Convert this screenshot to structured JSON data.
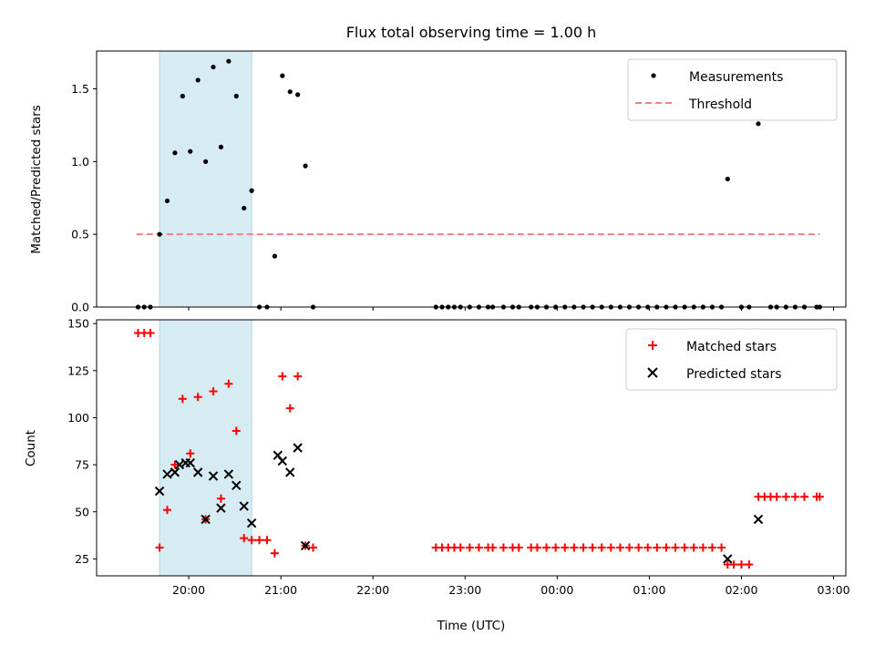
{
  "chart_data": [
    {
      "type": "scatter",
      "title": "Flux total observing time = 1.00 h",
      "xlabel": "",
      "ylabel": "Matched/Predicted stars",
      "ylim": [
        0,
        1.76
      ],
      "yticks": [
        0.0,
        0.5,
        1.0,
        1.5
      ],
      "ytick_labels": [
        "0.0",
        "0.5",
        "1.0",
        "1.5"
      ],
      "legend_position": "top-right",
      "highlight": {
        "color": "#add8e6",
        "x_start": "19:41",
        "x_end": "20:41"
      },
      "series": [
        {
          "name": "Measurements",
          "marker": "dot",
          "color": "#000000",
          "points": [
            [
              "19:27",
              0
            ],
            [
              "19:31",
              0
            ],
            [
              "19:35",
              0
            ],
            [
              "19:41",
              0.5
            ],
            [
              "19:46",
              0.73
            ],
            [
              "19:51",
              1.06
            ],
            [
              "19:56",
              1.45
            ],
            [
              "20:01",
              1.07
            ],
            [
              "20:06",
              1.56
            ],
            [
              "20:11",
              1.0
            ],
            [
              "20:16",
              1.65
            ],
            [
              "20:21",
              1.1
            ],
            [
              "20:26",
              1.69
            ],
            [
              "20:31",
              1.45
            ],
            [
              "20:36",
              0.68
            ],
            [
              "20:41",
              0.8
            ],
            [
              "20:46",
              0
            ],
            [
              "20:51",
              0
            ],
            [
              "20:56",
              0.35
            ],
            [
              "21:01",
              1.59
            ],
            [
              "21:06",
              1.48
            ],
            [
              "21:11",
              1.46
            ],
            [
              "21:16",
              0.97
            ],
            [
              "21:21",
              0
            ],
            [
              "22:41",
              0
            ],
            [
              "22:45",
              0
            ],
            [
              "22:49",
              0
            ],
            [
              "22:53",
              0
            ],
            [
              "22:57",
              0
            ],
            [
              "23:03",
              0
            ],
            [
              "23:09",
              0
            ],
            [
              "23:15",
              0
            ],
            [
              "23:18",
              0
            ],
            [
              "23:25",
              0
            ],
            [
              "23:31",
              0
            ],
            [
              "23:35",
              0
            ],
            [
              "23:43",
              0
            ],
            [
              "23:47",
              0
            ],
            [
              "23:53",
              0
            ],
            [
              "23:59",
              0
            ],
            [
              "00:05",
              0
            ],
            [
              "00:11",
              0
            ],
            [
              "00:17",
              0
            ],
            [
              "00:23",
              0
            ],
            [
              "00:29",
              0
            ],
            [
              "00:35",
              0
            ],
            [
              "00:41",
              0
            ],
            [
              "00:47",
              0
            ],
            [
              "00:53",
              0
            ],
            [
              "00:59",
              0
            ],
            [
              "01:05",
              0
            ],
            [
              "01:11",
              0
            ],
            [
              "01:17",
              0
            ],
            [
              "01:23",
              0
            ],
            [
              "01:29",
              0
            ],
            [
              "01:35",
              0
            ],
            [
              "01:41",
              0
            ],
            [
              "01:47",
              0
            ],
            [
              "01:51",
              0.88
            ],
            [
              "02:00",
              0
            ],
            [
              "02:05",
              0
            ],
            [
              "02:11",
              1.26
            ],
            [
              "02:19",
              0
            ],
            [
              "02:23",
              0
            ],
            [
              "02:29",
              0
            ],
            [
              "02:35",
              0
            ],
            [
              "02:41",
              0
            ],
            [
              "02:49",
              0
            ],
            [
              "02:51",
              0
            ]
          ]
        },
        {
          "name": "Threshold",
          "type": "line",
          "style": "dashed",
          "color": "#f08080",
          "points": [
            [
              "19:26",
              0.5
            ],
            [
              "02:51",
              0.5
            ]
          ]
        }
      ]
    },
    {
      "type": "scatter",
      "title": "",
      "xlabel": "Time (UTC)",
      "ylabel": "Count",
      "ylim": [
        16,
        152
      ],
      "yticks": [
        25,
        50,
        75,
        100,
        125,
        150
      ],
      "ytick_labels": [
        "25",
        "50",
        "75",
        "100",
        "125",
        "150"
      ],
      "x_range": [
        "19:00",
        "03:08"
      ],
      "xticks": [
        "20:00",
        "21:00",
        "22:00",
        "23:00",
        "00:00",
        "01:00",
        "02:00",
        "03:00"
      ],
      "legend_position": "top-right",
      "highlight": {
        "color": "#add8e6",
        "x_start": "19:41",
        "x_end": "20:41"
      },
      "series": [
        {
          "name": "Matched stars",
          "marker": "plus",
          "color": "#ff0000",
          "points": [
            [
              "19:27",
              145
            ],
            [
              "19:31",
              145
            ],
            [
              "19:35",
              145
            ],
            [
              "19:41",
              31
            ],
            [
              "19:46",
              51
            ],
            [
              "19:51",
              75
            ],
            [
              "19:56",
              110
            ],
            [
              "20:01",
              81
            ],
            [
              "20:06",
              111
            ],
            [
              "20:11",
              46
            ],
            [
              "20:16",
              114
            ],
            [
              "20:21",
              57
            ],
            [
              "20:26",
              118
            ],
            [
              "20:31",
              93
            ],
            [
              "20:36",
              36
            ],
            [
              "20:41",
              35
            ],
            [
              "20:46",
              35
            ],
            [
              "20:51",
              35
            ],
            [
              "20:56",
              28
            ],
            [
              "21:01",
              122
            ],
            [
              "21:06",
              105
            ],
            [
              "21:11",
              122
            ],
            [
              "21:16",
              32
            ],
            [
              "21:21",
              31
            ],
            [
              "22:41",
              31
            ],
            [
              "22:45",
              31
            ],
            [
              "22:49",
              31
            ],
            [
              "22:53",
              31
            ],
            [
              "22:57",
              31
            ],
            [
              "23:03",
              31
            ],
            [
              "23:09",
              31
            ],
            [
              "23:15",
              31
            ],
            [
              "23:18",
              31
            ],
            [
              "23:25",
              31
            ],
            [
              "23:31",
              31
            ],
            [
              "23:35",
              31
            ],
            [
              "23:43",
              31
            ],
            [
              "23:47",
              31
            ],
            [
              "23:53",
              31
            ],
            [
              "23:59",
              31
            ],
            [
              "00:05",
              31
            ],
            [
              "00:11",
              31
            ],
            [
              "00:17",
              31
            ],
            [
              "00:23",
              31
            ],
            [
              "00:29",
              31
            ],
            [
              "00:35",
              31
            ],
            [
              "00:41",
              31
            ],
            [
              "00:47",
              31
            ],
            [
              "00:53",
              31
            ],
            [
              "00:59",
              31
            ],
            [
              "01:05",
              31
            ],
            [
              "01:11",
              31
            ],
            [
              "01:17",
              31
            ],
            [
              "01:23",
              31
            ],
            [
              "01:29",
              31
            ],
            [
              "01:35",
              31
            ],
            [
              "01:41",
              31
            ],
            [
              "01:47",
              31
            ],
            [
              "01:51",
              22
            ],
            [
              "01:55",
              22
            ],
            [
              "02:00",
              22
            ],
            [
              "02:05",
              22
            ],
            [
              "02:11",
              58
            ],
            [
              "02:15",
              58
            ],
            [
              "02:19",
              58
            ],
            [
              "02:23",
              58
            ],
            [
              "02:29",
              58
            ],
            [
              "02:35",
              58
            ],
            [
              "02:41",
              58
            ],
            [
              "02:49",
              58
            ],
            [
              "02:51",
              58
            ]
          ]
        },
        {
          "name": "Predicted stars",
          "marker": "x",
          "color": "#000000",
          "points": [
            [
              "19:41",
              61
            ],
            [
              "19:46",
              70
            ],
            [
              "19:51",
              71
            ],
            [
              "19:54",
              75
            ],
            [
              "19:58",
              76
            ],
            [
              "20:01",
              76
            ],
            [
              "20:06",
              71
            ],
            [
              "20:11",
              46
            ],
            [
              "20:16",
              69
            ],
            [
              "20:21",
              52
            ],
            [
              "20:26",
              70
            ],
            [
              "20:31",
              64
            ],
            [
              "20:36",
              53
            ],
            [
              "20:41",
              44
            ],
            [
              "20:58",
              80
            ],
            [
              "21:01",
              77
            ],
            [
              "21:06",
              71
            ],
            [
              "21:11",
              84
            ],
            [
              "21:16",
              32
            ],
            [
              "01:51",
              25
            ],
            [
              "02:11",
              46
            ]
          ]
        }
      ]
    }
  ]
}
